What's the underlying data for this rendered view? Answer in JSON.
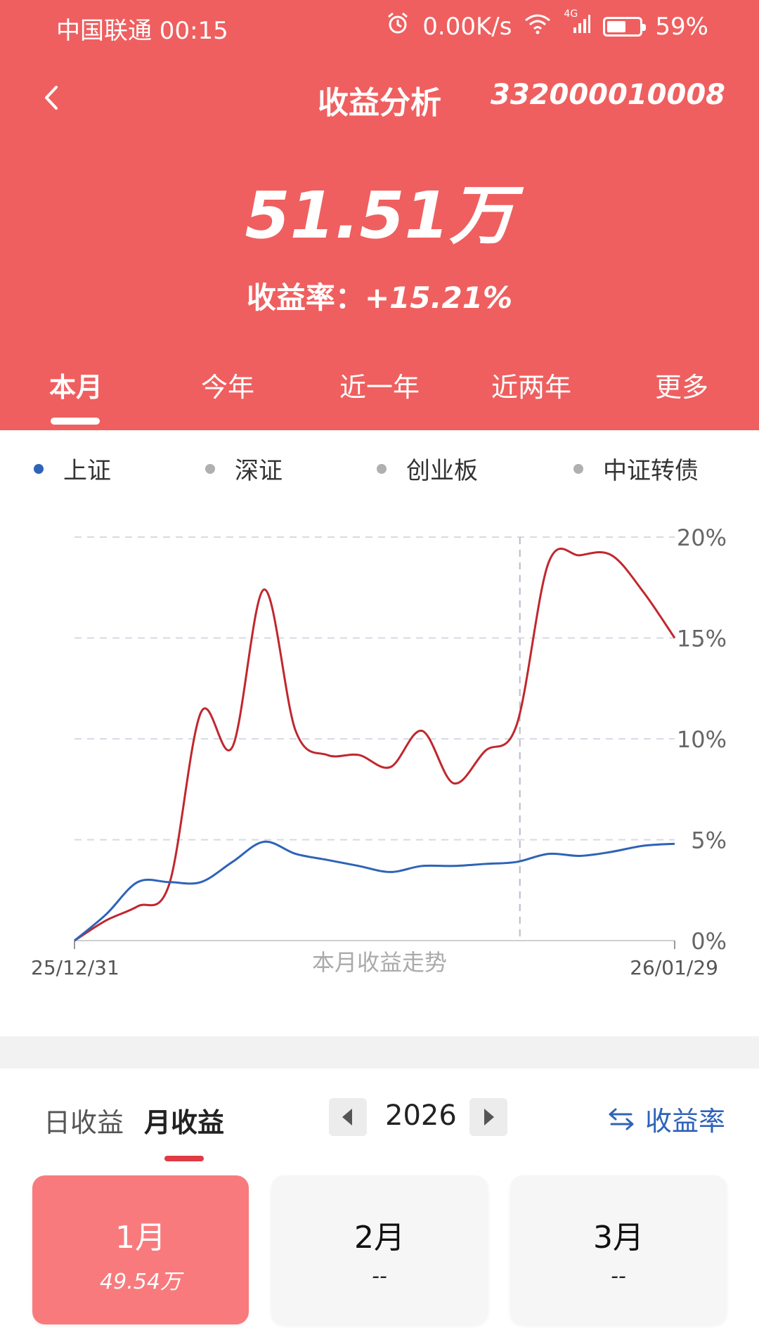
{
  "status": {
    "carrier_time": "中国联通 00:15",
    "net_speed": "0.00K/s",
    "network": "4G",
    "battery": "59%",
    "battery_level": 0.59
  },
  "header": {
    "title": "收益分析",
    "account": "332000010008",
    "amount": "51.51万",
    "yield_label": "收益率：",
    "yield_value": "+15.21%"
  },
  "tabs": [
    {
      "label": "本月",
      "active": true
    },
    {
      "label": "今年",
      "active": false
    },
    {
      "label": "近一年",
      "active": false
    },
    {
      "label": "近两年",
      "active": false
    },
    {
      "label": "更多",
      "active": false
    }
  ],
  "legend": [
    {
      "label": "上证",
      "color": "#2e63b8"
    },
    {
      "label": "深证",
      "color": "#b0b0b0"
    },
    {
      "label": "创业板",
      "color": "#b0b0b0"
    },
    {
      "label": "中证转债",
      "color": "#b0b0b0"
    }
  ],
  "chart_data": {
    "type": "line",
    "title": "本月收益走势",
    "x_start_label": "25/12/31",
    "x_end_label": "26/01/29",
    "y_ticks": [
      "0%",
      "5%",
      "10%",
      "15%",
      "20%"
    ],
    "ylim": [
      0,
      20
    ],
    "x_count": 20,
    "cursor_index": 15,
    "grid": true,
    "series": [
      {
        "color": "#c0272d",
        "values": [
          0,
          1.0,
          1.7,
          2.8,
          11.3,
          9.6,
          17.4,
          10.4,
          9.2,
          9.2,
          8.6,
          10.4,
          7.8,
          9.4,
          10.7,
          18.7,
          19.1,
          19.1,
          17.3,
          15.0
        ]
      },
      {
        "color": "#2e63b8",
        "values": [
          0,
          1.3,
          2.9,
          2.9,
          2.9,
          3.9,
          4.9,
          4.3,
          4.0,
          3.7,
          3.4,
          3.7,
          3.7,
          3.8,
          3.9,
          4.3,
          4.2,
          4.4,
          4.7,
          4.8
        ]
      }
    ]
  },
  "controls": {
    "day_label": "日收益",
    "month_label": "月收益",
    "year": "2026",
    "toggle_label": "收益率"
  },
  "months": [
    {
      "month": "1月",
      "value": "49.54万",
      "active": true
    },
    {
      "month": "2月",
      "value": "--",
      "active": false
    },
    {
      "month": "3月",
      "value": "--",
      "active": false
    }
  ],
  "colors": {
    "header_bg": "#ef5f5f",
    "accent": "#e03a45",
    "link": "#2e63b8"
  }
}
